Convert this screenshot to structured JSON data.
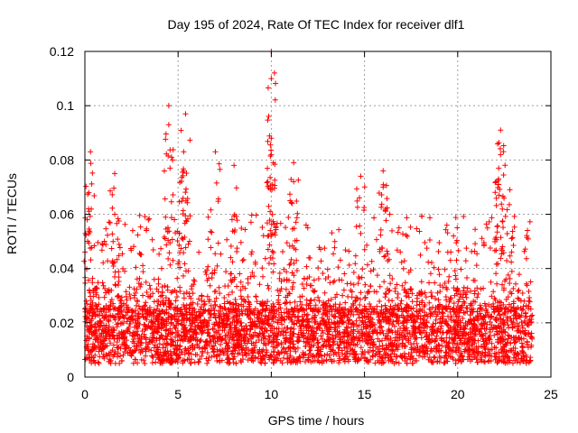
{
  "chart_data": {
    "type": "scatter",
    "title": "Day 195 of 2024, Rate Of TEC Index for receiver dlf1",
    "xlabel": "GPS time / hours",
    "ylabel": "ROTI / TECUs",
    "xlim": [
      0,
      25
    ],
    "ylim": [
      0,
      0.12
    ],
    "x_ticks": [
      0,
      5,
      10,
      15,
      20,
      25
    ],
    "y_ticks": [
      0,
      0.02,
      0.04,
      0.06,
      0.08,
      0.1,
      0.12
    ],
    "x_tick_labels": [
      "0",
      "5",
      "10",
      "15",
      "20",
      "25"
    ],
    "y_tick_labels": [
      "0",
      "0.02",
      "0.04",
      "0.06",
      "0.08",
      "0.1",
      "0.12"
    ],
    "grid": true,
    "marker": "+",
    "color": "#ff0000",
    "series": [
      {
        "name": "ROTI",
        "x_range": [
          0,
          24
        ],
        "baseline_range": [
          0.005,
          0.025
        ],
        "spikes": [
          {
            "x": 0.3,
            "y": 0.083
          },
          {
            "x": 0.2,
            "y": 0.062
          },
          {
            "x": 1.6,
            "y": 0.075
          },
          {
            "x": 1.6,
            "y": 0.06
          },
          {
            "x": 4.5,
            "y": 0.1
          },
          {
            "x": 4.5,
            "y": 0.093
          },
          {
            "x": 5.4,
            "y": 0.097
          },
          {
            "x": 5.3,
            "y": 0.083
          },
          {
            "x": 5.3,
            "y": 0.076
          },
          {
            "x": 7.0,
            "y": 0.083
          },
          {
            "x": 8.0,
            "y": 0.078
          },
          {
            "x": 10.0,
            "y": 0.12
          },
          {
            "x": 10.0,
            "y": 0.11
          },
          {
            "x": 10.0,
            "y": 0.088
          },
          {
            "x": 10.0,
            "y": 0.082
          },
          {
            "x": 11.2,
            "y": 0.079
          },
          {
            "x": 11.2,
            "y": 0.072
          },
          {
            "x": 14.8,
            "y": 0.074
          },
          {
            "x": 16.0,
            "y": 0.076
          },
          {
            "x": 16.0,
            "y": 0.07
          },
          {
            "x": 22.3,
            "y": 0.091
          },
          {
            "x": 22.3,
            "y": 0.082
          },
          {
            "x": 22.2,
            "y": 0.077
          },
          {
            "x": 22.8,
            "y": 0.069
          }
        ]
      }
    ]
  }
}
